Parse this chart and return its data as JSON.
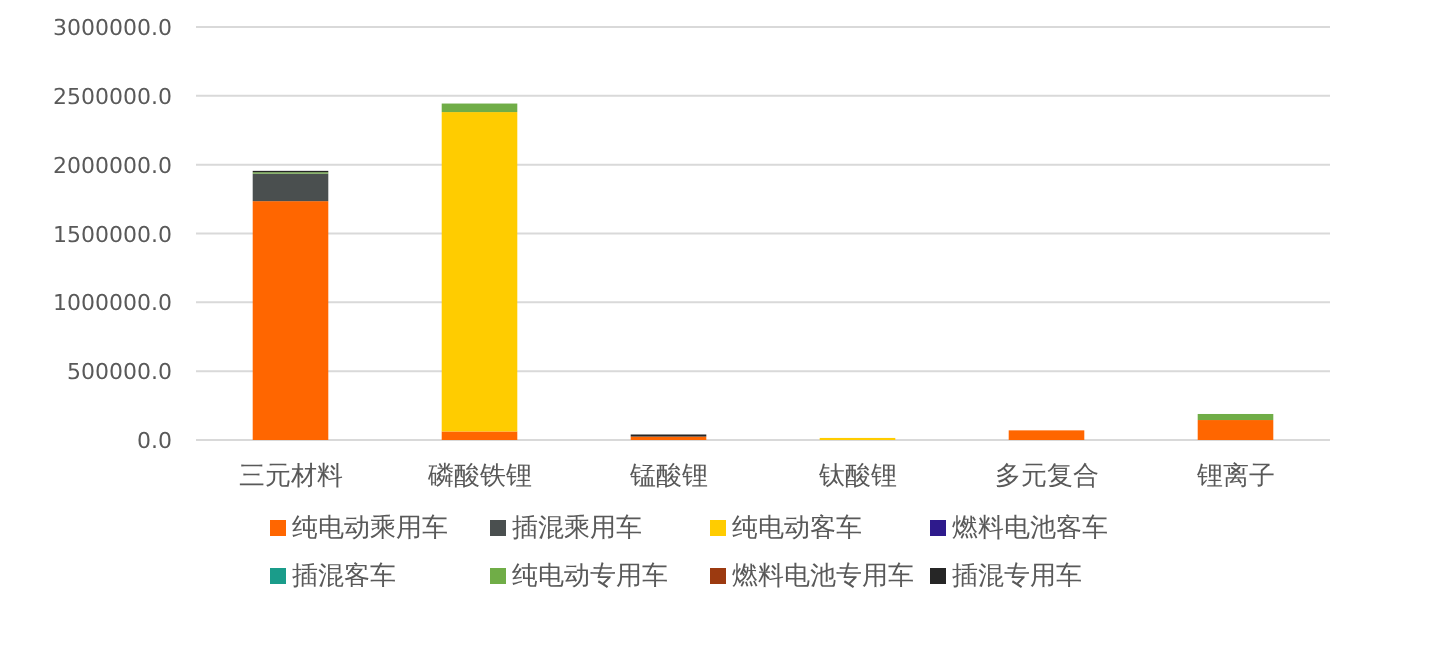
{
  "chart_data": {
    "type": "bar",
    "stacked": true,
    "categories": [
      "三元材料",
      "磷酸铁锂",
      "锰酸锂",
      "钛酸锂",
      "多元复合",
      "锂离子"
    ],
    "series": [
      {
        "name": "纯电动乘用车",
        "color": "#ff6600",
        "values": [
          1735000,
          62000,
          25000,
          0,
          70000,
          145000
        ]
      },
      {
        "name": "插混乘用车",
        "color": "#4a4f4f",
        "values": [
          200000,
          0,
          0,
          0,
          0,
          0
        ]
      },
      {
        "name": "纯电动客车",
        "color": "#ffcc00",
        "values": [
          0,
          2320000,
          0,
          15000,
          0,
          0
        ]
      },
      {
        "name": "燃料电池客车",
        "color": "#2e1a8c",
        "values": [
          0,
          0,
          0,
          0,
          0,
          0
        ]
      },
      {
        "name": "插混客车",
        "color": "#1a9c8a",
        "values": [
          0,
          0,
          0,
          0,
          0,
          0
        ]
      },
      {
        "name": "纯电动专用车",
        "color": "#70ad47",
        "values": [
          10000,
          62000,
          0,
          0,
          0,
          44000
        ]
      },
      {
        "name": "燃料电池专用车",
        "color": "#9c3a10",
        "values": [
          0,
          0,
          0,
          0,
          0,
          0
        ]
      },
      {
        "name": "插混专用车",
        "color": "#262626",
        "values": [
          10000,
          0,
          15000,
          0,
          0,
          0
        ]
      }
    ],
    "ylim": [
      0,
      3000000
    ],
    "yticks": [
      {
        "value": 0,
        "label": "0.0"
      },
      {
        "value": 500000,
        "label": "500000.0"
      },
      {
        "value": 1000000,
        "label": "1000000.0"
      },
      {
        "value": 1500000,
        "label": "1500000.0"
      },
      {
        "value": 2000000,
        "label": "2000000.0"
      },
      {
        "value": 2500000,
        "label": "2500000.0"
      },
      {
        "value": 3000000,
        "label": "3000000.0"
      }
    ],
    "grid": "y",
    "legend": "bottom"
  }
}
